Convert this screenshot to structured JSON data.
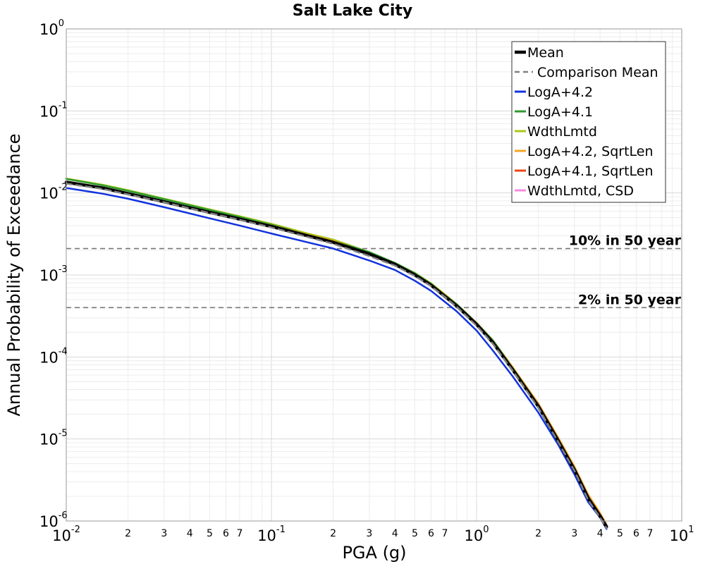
{
  "chart_data": {
    "type": "line",
    "title": "Salt Lake City",
    "xlabel": "PGA (g)",
    "ylabel": "Annual Probability of Exceedance",
    "xscale": "log",
    "yscale": "log",
    "xlim": [
      0.01,
      10
    ],
    "ylim": [
      1e-06,
      1
    ],
    "grid": true,
    "legend_position": "top-right",
    "x_ticks_major": [
      {
        "base": "10",
        "exp": "-2"
      },
      {
        "base": "10",
        "exp": "-1"
      },
      {
        "base": "10",
        "exp": "0"
      },
      {
        "base": "10",
        "exp": "1"
      }
    ],
    "y_ticks_major": [
      {
        "base": "10",
        "exp": "0"
      },
      {
        "base": "10",
        "exp": "-1"
      },
      {
        "base": "10",
        "exp": "-2"
      },
      {
        "base": "10",
        "exp": "-3"
      },
      {
        "base": "10",
        "exp": "-4"
      },
      {
        "base": "10",
        "exp": "-5"
      },
      {
        "base": "10",
        "exp": "-6"
      }
    ],
    "x_minor_tick_labels": [
      "2",
      "3",
      "4",
      "5",
      "6",
      "7"
    ],
    "reference_lines": [
      {
        "label": "10% in 50 year",
        "y": 0.0021
      },
      {
        "label": "2% in 50 year",
        "y": 0.0004
      }
    ],
    "series": [
      {
        "name": "Mean",
        "color": "#000000",
        "style": "solid-thick",
        "x": [
          0.01,
          0.015,
          0.02,
          0.03,
          0.05,
          0.07,
          0.1,
          0.15,
          0.2,
          0.3,
          0.4,
          0.5,
          0.6,
          0.7,
          0.8,
          1.0,
          1.2,
          1.5,
          2.0,
          2.5,
          3.0,
          3.5,
          4.0,
          4.3
        ],
        "y": [
          0.0135,
          0.0115,
          0.0098,
          0.0078,
          0.0058,
          0.0048,
          0.0039,
          0.003,
          0.0025,
          0.0018,
          0.00135,
          0.001,
          0.00075,
          0.00055,
          0.00042,
          0.00025,
          0.00015,
          7e-05,
          2.5e-05,
          9.5e-06,
          4.2e-06,
          1.9e-06,
          1.15e-06,
          8.5e-07
        ]
      },
      {
        "name": "Comparison Mean",
        "color": "#808080",
        "style": "dashed",
        "x": [
          0.01,
          0.015,
          0.02,
          0.03,
          0.05,
          0.07,
          0.1,
          0.15,
          0.2,
          0.3,
          0.4,
          0.5,
          0.6,
          0.7,
          0.8,
          1.0,
          1.2,
          1.5,
          2.0,
          2.5,
          3.0,
          3.5,
          4.0,
          4.3
        ],
        "y": [
          0.013,
          0.0112,
          0.0096,
          0.0077,
          0.0057,
          0.0047,
          0.0038,
          0.0029,
          0.0024,
          0.0017,
          0.0013,
          0.00097,
          0.00073,
          0.00054,
          0.00041,
          0.00024,
          0.000145,
          6.8e-05,
          2.4e-05,
          9.2e-06,
          4.1e-06,
          1.8e-06,
          1.1e-06,
          8.2e-07
        ]
      },
      {
        "name": "LogA+4.2",
        "color": "#1133dd",
        "style": "solid",
        "x": [
          0.01,
          0.015,
          0.02,
          0.03,
          0.05,
          0.07,
          0.1,
          0.15,
          0.2,
          0.3,
          0.4,
          0.5,
          0.6,
          0.7,
          0.8,
          1.0,
          1.2,
          1.5,
          2.0,
          2.5,
          3.0,
          3.5,
          4.0,
          4.3
        ],
        "y": [
          0.0115,
          0.0098,
          0.0085,
          0.0067,
          0.0049,
          0.004,
          0.0032,
          0.0025,
          0.0021,
          0.0015,
          0.00115,
          0.00085,
          0.00064,
          0.00047,
          0.00036,
          0.00021,
          0.00012,
          5.8e-05,
          2.1e-05,
          8.5e-06,
          3.7e-06,
          1.7e-06,
          1.1e-06,
          8e-07
        ]
      },
      {
        "name": "LogA+4.1",
        "color": "#2e9a2e",
        "style": "solid",
        "x": [
          0.01,
          0.015,
          0.02,
          0.03,
          0.05,
          0.07,
          0.1,
          0.15,
          0.2,
          0.3,
          0.4,
          0.5,
          0.6,
          0.7,
          0.8,
          1.0,
          1.2,
          1.5,
          2.0,
          2.5,
          3.0,
          3.5,
          4.0,
          4.3
        ],
        "y": [
          0.0148,
          0.0124,
          0.0106,
          0.0084,
          0.0062,
          0.0051,
          0.0041,
          0.0031,
          0.0026,
          0.0019,
          0.0014,
          0.00105,
          0.00078,
          0.00057,
          0.00044,
          0.00026,
          0.00016,
          7.4e-05,
          2.7e-05,
          1.02e-05,
          4.5e-06,
          2e-06,
          1.2e-06,
          8.8e-07
        ]
      },
      {
        "name": "WdthLmtd",
        "color": "#a8c81a",
        "style": "solid",
        "x": [
          0.01,
          0.015,
          0.02,
          0.03,
          0.05,
          0.07,
          0.1,
          0.15,
          0.2,
          0.3,
          0.4,
          0.5,
          0.6,
          0.7,
          0.8,
          1.0,
          1.2,
          1.5,
          2.0,
          2.5,
          3.0,
          3.5,
          4.0,
          4.3
        ],
        "y": [
          0.015,
          0.0126,
          0.0108,
          0.0085,
          0.0063,
          0.0052,
          0.0042,
          0.0032,
          0.0027,
          0.0019,
          0.0014,
          0.00106,
          0.00079,
          0.00058,
          0.00044,
          0.00026,
          0.00016,
          7.5e-05,
          2.7e-05,
          1.03e-05,
          4.6e-06,
          2e-06,
          1.2e-06,
          8.8e-07
        ]
      },
      {
        "name": "LogA+4.2, SqrtLen",
        "color": "#f5a623",
        "style": "solid",
        "x": [
          0.01,
          0.015,
          0.02,
          0.03,
          0.05,
          0.07,
          0.1,
          0.15,
          0.2,
          0.3,
          0.4,
          0.5,
          0.6,
          0.7,
          0.8,
          1.0,
          1.2,
          1.5,
          2.0,
          2.5,
          3.0,
          3.5,
          4.0,
          4.3
        ],
        "y": [
          0.0138,
          0.0117,
          0.01,
          0.0079,
          0.0059,
          0.0049,
          0.004,
          0.0031,
          0.0026,
          0.0018,
          0.00137,
          0.00102,
          0.00077,
          0.00057,
          0.00043,
          0.00026,
          0.000155,
          7.4e-05,
          2.7e-05,
          1.04e-05,
          4.6e-06,
          2.1e-06,
          1.25e-06,
          9e-07
        ]
      },
      {
        "name": "LogA+4.1, SqrtLen",
        "color": "#ee4411",
        "style": "solid",
        "x": [
          0.01,
          0.015,
          0.02,
          0.03,
          0.05,
          0.07,
          0.1,
          0.15,
          0.2,
          0.3,
          0.4,
          0.5,
          0.6,
          0.7,
          0.8,
          1.0,
          1.2,
          1.5,
          2.0,
          2.5,
          3.0,
          3.5,
          4.0,
          4.3
        ],
        "y": [
          0.0136,
          0.0116,
          0.0099,
          0.0078,
          0.0058,
          0.0048,
          0.0039,
          0.003,
          0.0025,
          0.0018,
          0.00135,
          0.001,
          0.00075,
          0.00055,
          0.00042,
          0.00025,
          0.00015,
          7e-05,
          2.5e-05,
          9.5e-06,
          4.2e-06,
          1.9e-06,
          1.15e-06,
          8.5e-07
        ]
      },
      {
        "name": "WdthLmtd, CSD",
        "color": "#f58ae0",
        "style": "solid",
        "x": [
          0.01,
          0.015,
          0.02,
          0.03,
          0.05,
          0.07,
          0.1,
          0.15,
          0.2,
          0.3,
          0.4,
          0.5,
          0.6,
          0.7,
          0.8,
          1.0,
          1.2,
          1.5,
          2.0,
          2.5,
          3.0,
          3.5,
          4.0,
          4.3
        ],
        "y": [
          0.0134,
          0.0114,
          0.0097,
          0.0077,
          0.0057,
          0.0047,
          0.0038,
          0.003,
          0.0025,
          0.0018,
          0.00134,
          0.001,
          0.00075,
          0.00055,
          0.00042,
          0.00025,
          0.00015,
          7e-05,
          2.5e-05,
          9.5e-06,
          4.2e-06,
          1.9e-06,
          1.15e-06,
          8.5e-07
        ]
      }
    ]
  }
}
